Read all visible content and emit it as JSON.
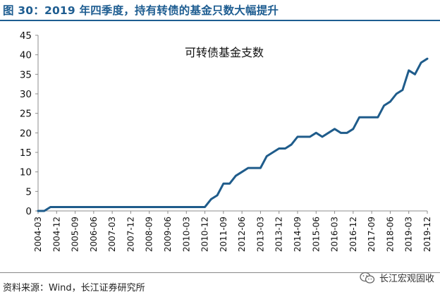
{
  "header": {
    "title": "图 30：2019 年四季度，持有转债的基金只数大幅提升"
  },
  "footer": {
    "source": "资料来源：Wind，长江证券研究所",
    "watermark": "长江宏观固收",
    "watermark_icon": "wechat-icon"
  },
  "colors": {
    "title": "#1e5d91",
    "series": "#1f5c8b"
  },
  "chart_data": {
    "type": "line",
    "title": "",
    "xlabel": "",
    "ylabel": "",
    "ylim": [
      0,
      45
    ],
    "yticks": [
      0,
      5,
      10,
      15,
      20,
      25,
      30,
      35,
      40,
      45
    ],
    "xticks": [
      "2004-03",
      "2004-12",
      "2005-09",
      "2006-06",
      "2007-03",
      "2007-12",
      "2008-09",
      "2009-06",
      "2010-03",
      "2010-12",
      "2011-09",
      "2012-06",
      "2013-03",
      "2013-12",
      "2014-09",
      "2015-06",
      "2016-03",
      "2016-12",
      "2017-09",
      "2018-06",
      "2019-03",
      "2019-12"
    ],
    "legend": "inside-top",
    "grid": false,
    "series": [
      {
        "name": "可转债基金支数",
        "x": [
          "2004-03",
          "2004-06",
          "2004-09",
          "2004-12",
          "2005-03",
          "2005-06",
          "2005-09",
          "2005-12",
          "2006-03",
          "2006-06",
          "2006-09",
          "2006-12",
          "2007-03",
          "2007-06",
          "2007-09",
          "2007-12",
          "2008-03",
          "2008-06",
          "2008-09",
          "2008-12",
          "2009-03",
          "2009-06",
          "2009-09",
          "2009-12",
          "2010-03",
          "2010-06",
          "2010-09",
          "2010-12",
          "2011-03",
          "2011-06",
          "2011-09",
          "2011-12",
          "2012-03",
          "2012-06",
          "2012-09",
          "2012-12",
          "2013-03",
          "2013-06",
          "2013-09",
          "2013-12",
          "2014-03",
          "2014-06",
          "2014-09",
          "2014-12",
          "2015-03",
          "2015-06",
          "2015-09",
          "2015-12",
          "2016-03",
          "2016-06",
          "2016-09",
          "2016-12",
          "2017-03",
          "2017-06",
          "2017-09",
          "2017-12",
          "2018-03",
          "2018-06",
          "2018-09",
          "2018-12",
          "2019-03",
          "2019-06",
          "2019-09",
          "2019-12"
        ],
        "values": [
          0,
          0,
          1,
          1,
          1,
          1,
          1,
          1,
          1,
          1,
          1,
          1,
          1,
          1,
          1,
          1,
          1,
          1,
          1,
          1,
          1,
          1,
          1,
          1,
          1,
          1,
          1,
          1,
          3,
          4,
          7,
          7,
          9,
          10,
          11,
          11,
          11,
          14,
          15,
          16,
          16,
          17,
          19,
          19,
          19,
          20,
          19,
          20,
          21,
          20,
          20,
          21,
          24,
          24,
          24,
          24,
          27,
          28,
          30,
          31,
          36,
          35,
          38,
          39
        ]
      }
    ]
  }
}
